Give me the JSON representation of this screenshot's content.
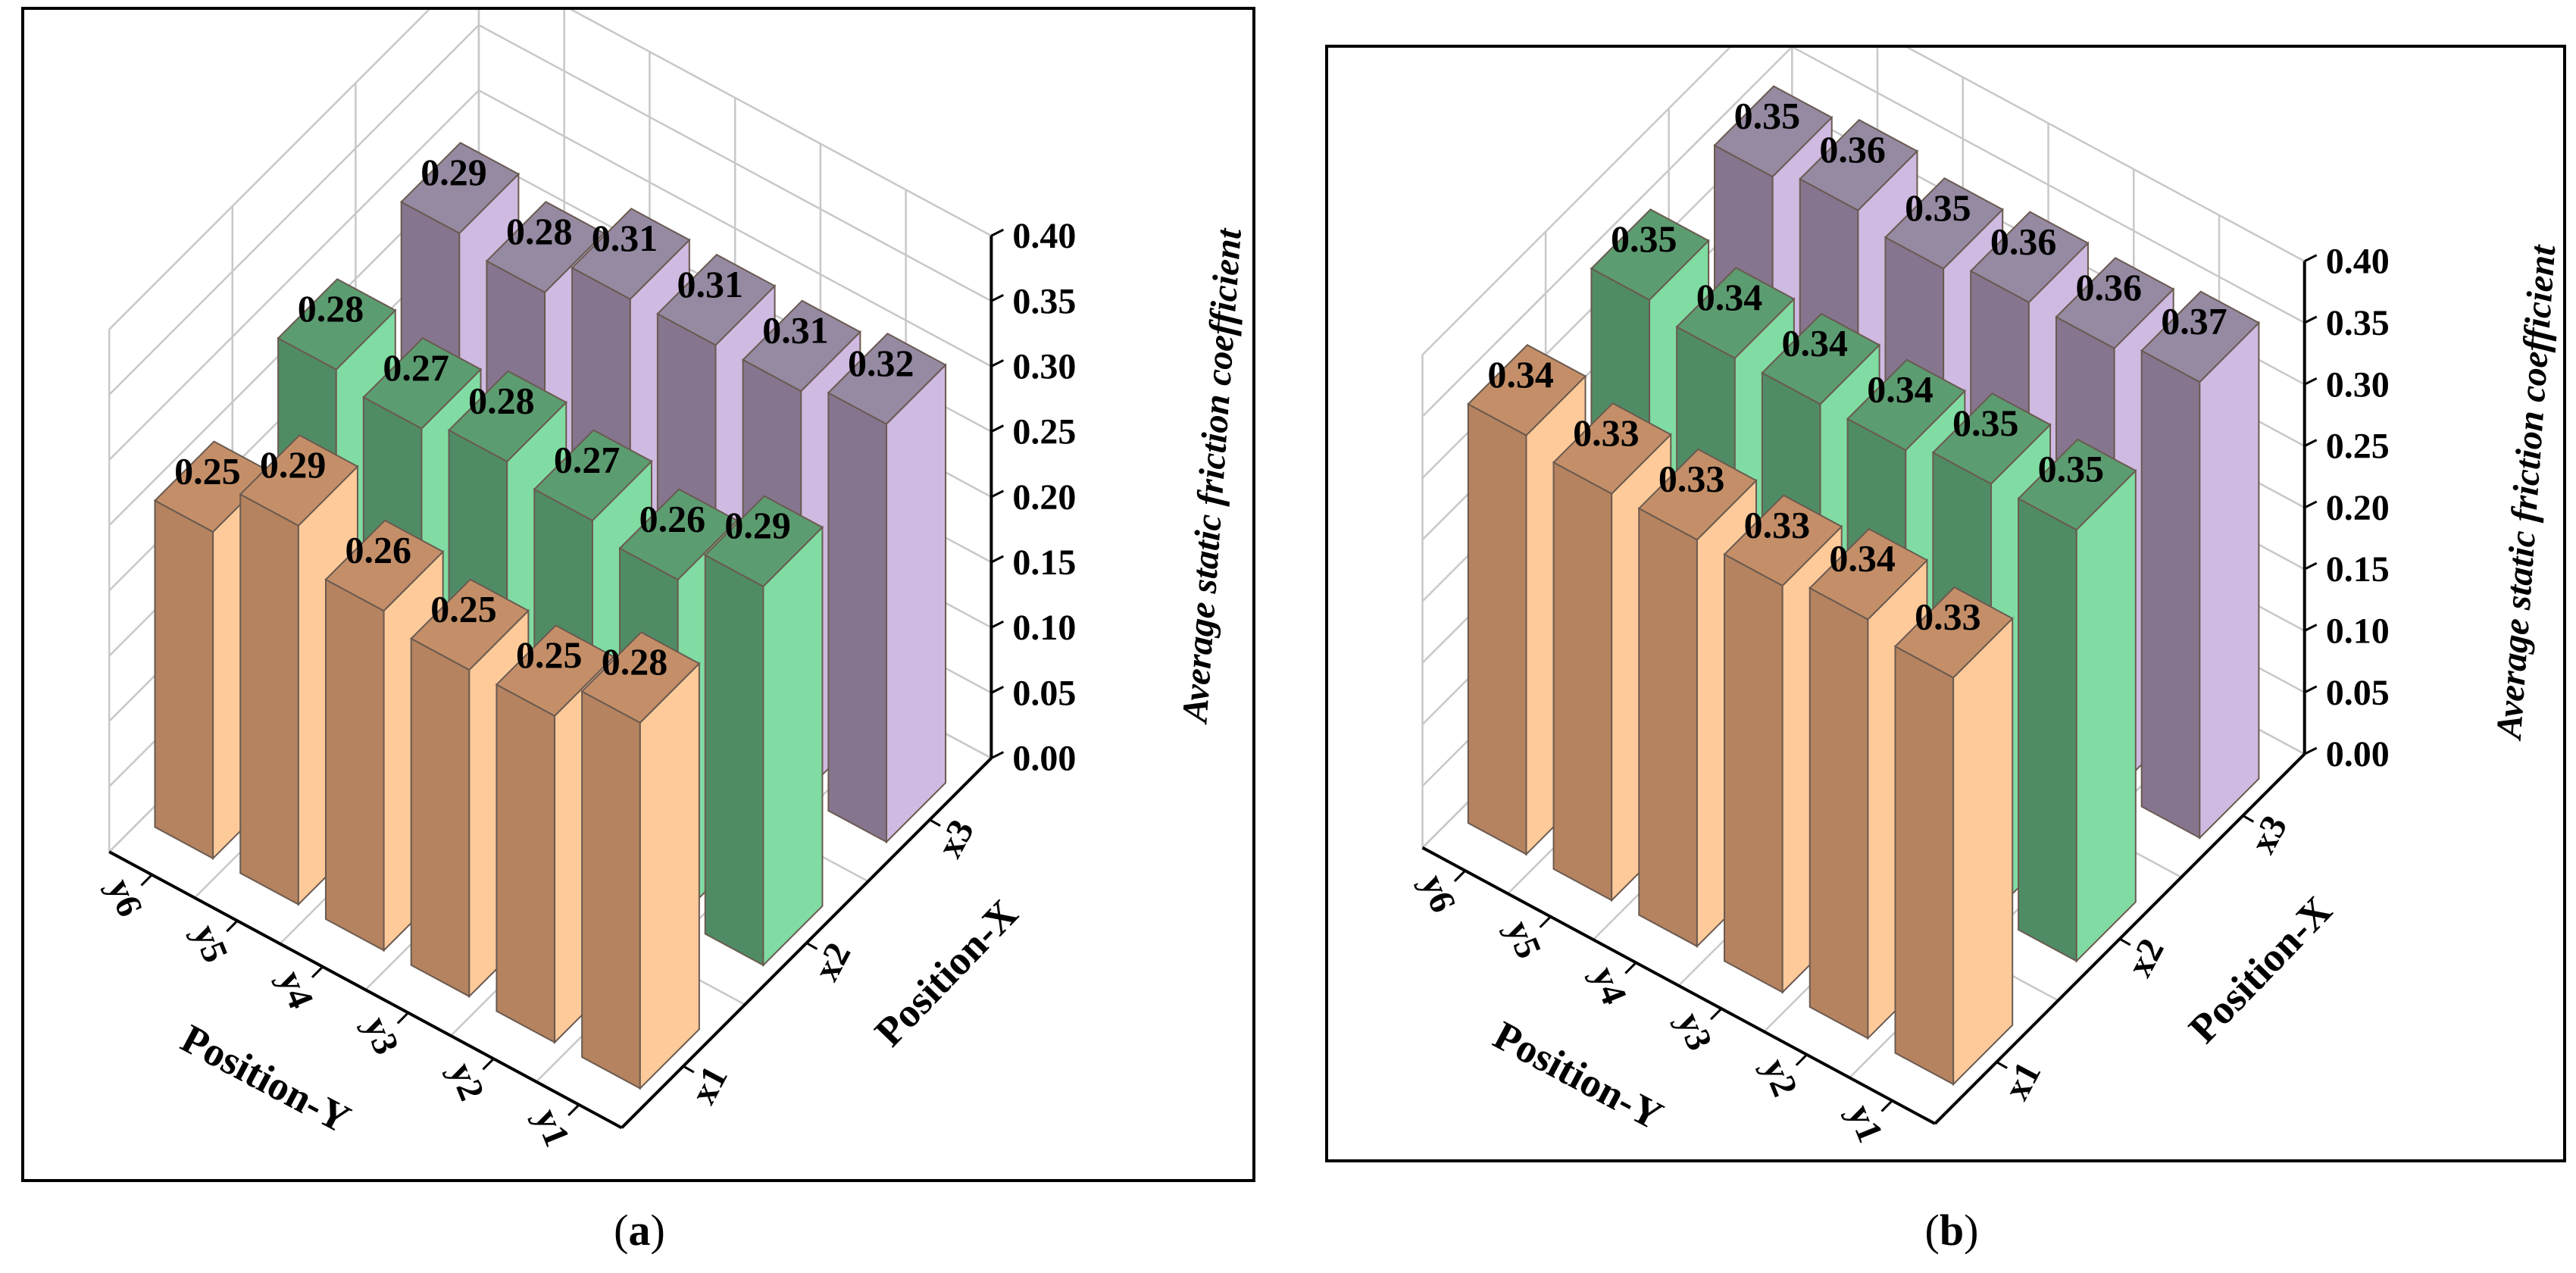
{
  "chart_data": [
    {
      "type": "bar3d",
      "panel_label": "a",
      "xlabel": "Position-X",
      "ylabel": "Position-Y",
      "zlabel": "Average static friction coefficient",
      "x_categories": [
        "x1",
        "x2",
        "x3"
      ],
      "y_categories": [
        "y1",
        "y2",
        "y3",
        "y4",
        "y5",
        "y6"
      ],
      "zlim": [
        0,
        0.4
      ],
      "z_ticks": [
        "0.00",
        "0.05",
        "0.10",
        "0.15",
        "0.20",
        "0.25",
        "0.30",
        "0.35",
        "0.40"
      ],
      "grid": true,
      "series": [
        {
          "name": "x1",
          "values": [
            0.28,
            0.25,
            0.25,
            0.26,
            0.29,
            0.25
          ],
          "labels": [
            "0.28",
            "0.25",
            "0.25",
            "0.26",
            "0.29",
            "0.25"
          ]
        },
        {
          "name": "x2",
          "values": [
            0.29,
            0.26,
            0.27,
            0.28,
            0.27,
            0.28
          ],
          "labels": [
            "0.29",
            "0.26",
            "0.27",
            "0.28",
            "0.27",
            "0.28"
          ]
        },
        {
          "name": "x3",
          "values": [
            0.32,
            0.31,
            0.31,
            0.31,
            0.28,
            0.29
          ],
          "labels": [
            "0.32",
            "0.31",
            "0.31",
            "0.31",
            "0.28",
            "0.29"
          ]
        }
      ]
    },
    {
      "type": "bar3d",
      "panel_label": "b",
      "xlabel": "Position-X",
      "ylabel": "Position-Y",
      "zlabel": "Average static friction coefficient",
      "x_categories": [
        "x1",
        "x2",
        "x3"
      ],
      "y_categories": [
        "y1",
        "y2",
        "y3",
        "y4",
        "y5",
        "y6"
      ],
      "zlim": [
        0,
        0.4
      ],
      "z_ticks": [
        "0.00",
        "0.05",
        "0.10",
        "0.15",
        "0.20",
        "0.25",
        "0.30",
        "0.35",
        "0.40"
      ],
      "grid": true,
      "series": [
        {
          "name": "x1",
          "values": [
            0.33,
            0.34,
            0.33,
            0.33,
            0.33,
            0.34
          ],
          "labels": [
            "0.33",
            "0.34",
            "0.33",
            "0.33",
            "0.33",
            "0.34"
          ]
        },
        {
          "name": "x2",
          "values": [
            0.35,
            0.35,
            0.34,
            0.34,
            0.34,
            0.35
          ],
          "labels": [
            "0.35",
            "0.35",
            "0.34",
            "0.34",
            "0.34",
            "0.35"
          ]
        },
        {
          "name": "x3",
          "values": [
            0.37,
            0.36,
            0.36,
            0.35,
            0.36,
            0.35
          ],
          "labels": [
            "0.37",
            "0.36",
            "0.36",
            "0.35",
            "0.36",
            "0.35"
          ]
        }
      ]
    }
  ],
  "colors": {
    "x1": {
      "dark": "#b5835f",
      "light": "#ffca9a",
      "top": "#c48f68"
    },
    "x2": {
      "dark": "#4f8c65",
      "light": "#80dca2",
      "top": "#5c9c71"
    },
    "x3": {
      "dark": "#85758f",
      "light": "#cfbae2",
      "top": "#958aa2"
    },
    "grid": "#c8c8c8"
  },
  "captions": {
    "a": "a",
    "b": "b"
  }
}
